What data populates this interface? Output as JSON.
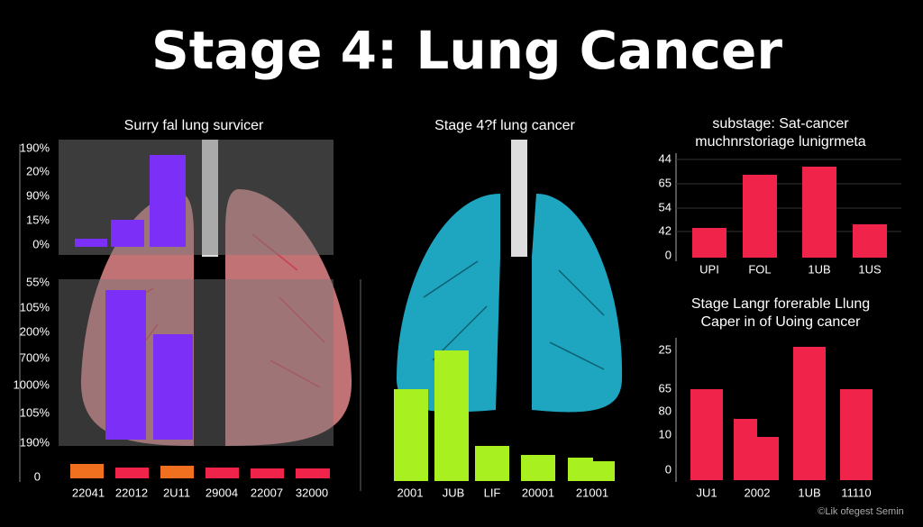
{
  "title": "Stage 4: Lung Cancer",
  "panels": [
    {
      "title": [
        "Surry fal lung survicer"
      ],
      "y_labels_top": [
        "190%",
        "20%",
        "90%",
        "15%",
        "0%"
      ],
      "y_labels_bottom": [
        "55%",
        "105%",
        "200%",
        "700%",
        "1000%",
        "105%",
        "190%"
      ],
      "y_label_base": "0",
      "x_labels": [
        "22041",
        "22012",
        "2U11",
        "29004",
        "22007",
        "32000"
      ]
    },
    {
      "title": [
        "Stage 4?f lung cancer"
      ],
      "x_labels": [
        "2001",
        "JUB",
        "LIF",
        "20001",
        "21001"
      ]
    },
    {
      "title": [
        "substage: Sat-cancer",
        "muchnrstoriage lunigrmeta"
      ],
      "y_labels": [
        "44",
        "65",
        "54",
        "42",
        "0"
      ],
      "x_labels": [
        "UPI",
        "FOL",
        "1UB",
        "1US"
      ]
    },
    {
      "title": [
        "Stage Langr forerable Llung",
        "Caper in of Uoing cancer"
      ],
      "y_labels": [
        "25",
        "65",
        "80",
        "10",
        "0"
      ],
      "x_labels": [
        "JU1",
        "2002",
        "1UB",
        "11110"
      ]
    }
  ],
  "credit": "©Lik ofegest Semin"
}
